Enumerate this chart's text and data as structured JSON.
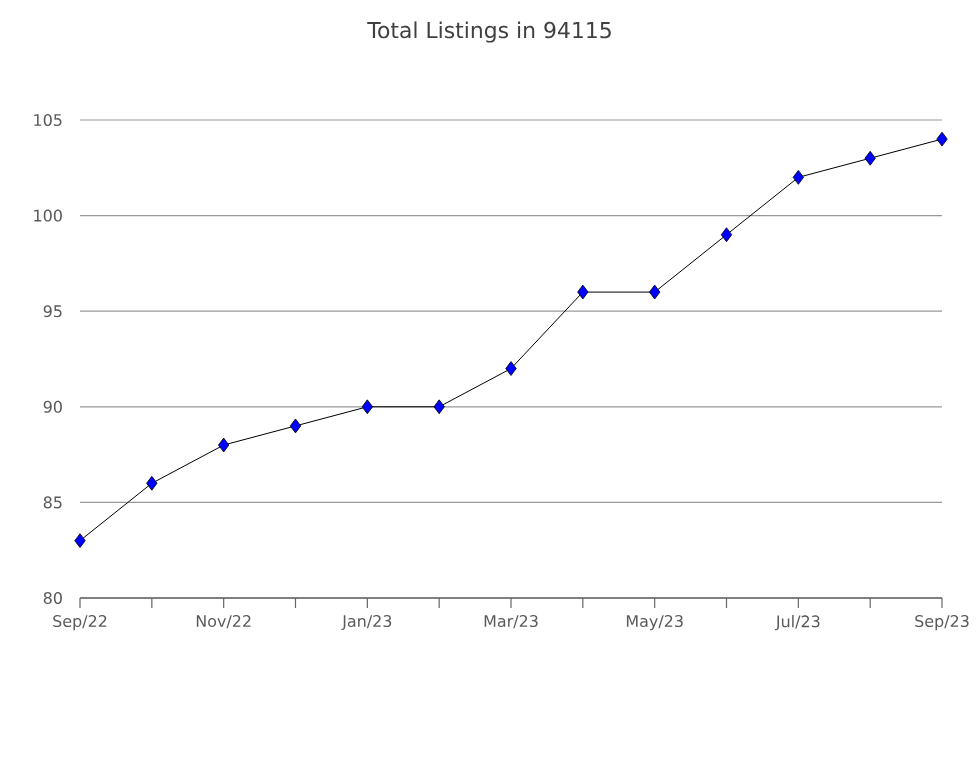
{
  "chart_data": {
    "type": "line",
    "title": "Total Listings in 94115",
    "categories": [
      "Sep/22",
      null,
      "Nov/22",
      null,
      "Jan/23",
      null,
      "Mar/23",
      null,
      "May/23",
      null,
      "Jul/23",
      null,
      "Sep/23"
    ],
    "values": [
      83,
      86,
      88,
      89,
      90,
      90,
      92,
      96,
      96,
      99,
      102,
      103,
      104
    ],
    "color": "#0000ff",
    "marker": "diamond",
    "grid": "y",
    "ylim": [
      80,
      105
    ],
    "yticks": [
      80,
      85,
      90,
      95,
      100,
      105
    ]
  }
}
